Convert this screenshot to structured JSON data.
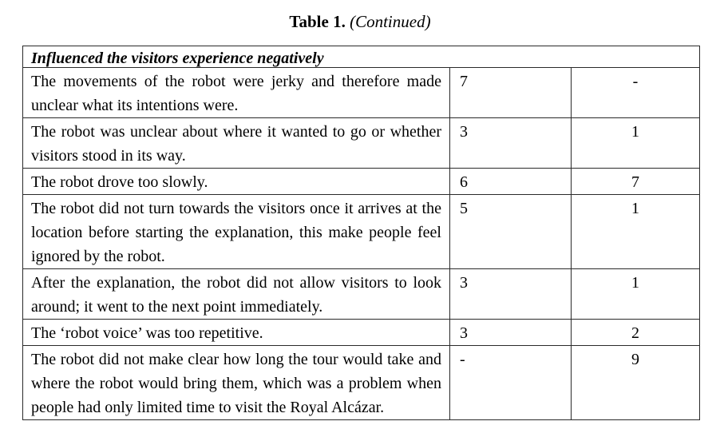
{
  "caption": {
    "label": "Table 1.",
    "continued": "(Continued)"
  },
  "section_title": "Influenced the visitors experience negatively",
  "rows": [
    {
      "text": "The movements of the robot were jerky and therefore made unclear what its intentions were.",
      "col1": "7",
      "col2": "-"
    },
    {
      "text": "The robot was unclear about where it wanted to go or whether visitors stood in its way.",
      "col1": "3",
      "col2": "1"
    },
    {
      "text": "The robot drove too slowly.",
      "col1": "6",
      "col2": "7"
    },
    {
      "text": "The robot did not turn towards the visitors once it arrives at the location before starting the explanation, this make people feel ignored by the robot.",
      "col1": "5",
      "col2": "1"
    },
    {
      "text": "After the explanation, the robot did not allow visitors to look around; it went to the next point immediately.",
      "col1": "3",
      "col2": "1"
    },
    {
      "text": "The ‘robot voice’ was too repetitive.",
      "col1": "3",
      "col2": "2"
    },
    {
      "text": "The robot did not make clear how long the tour would take and where the robot would bring them, which was a problem when people had only limited time to visit the Royal Alcázar.",
      "col1": "-",
      "col2": "9"
    }
  ]
}
